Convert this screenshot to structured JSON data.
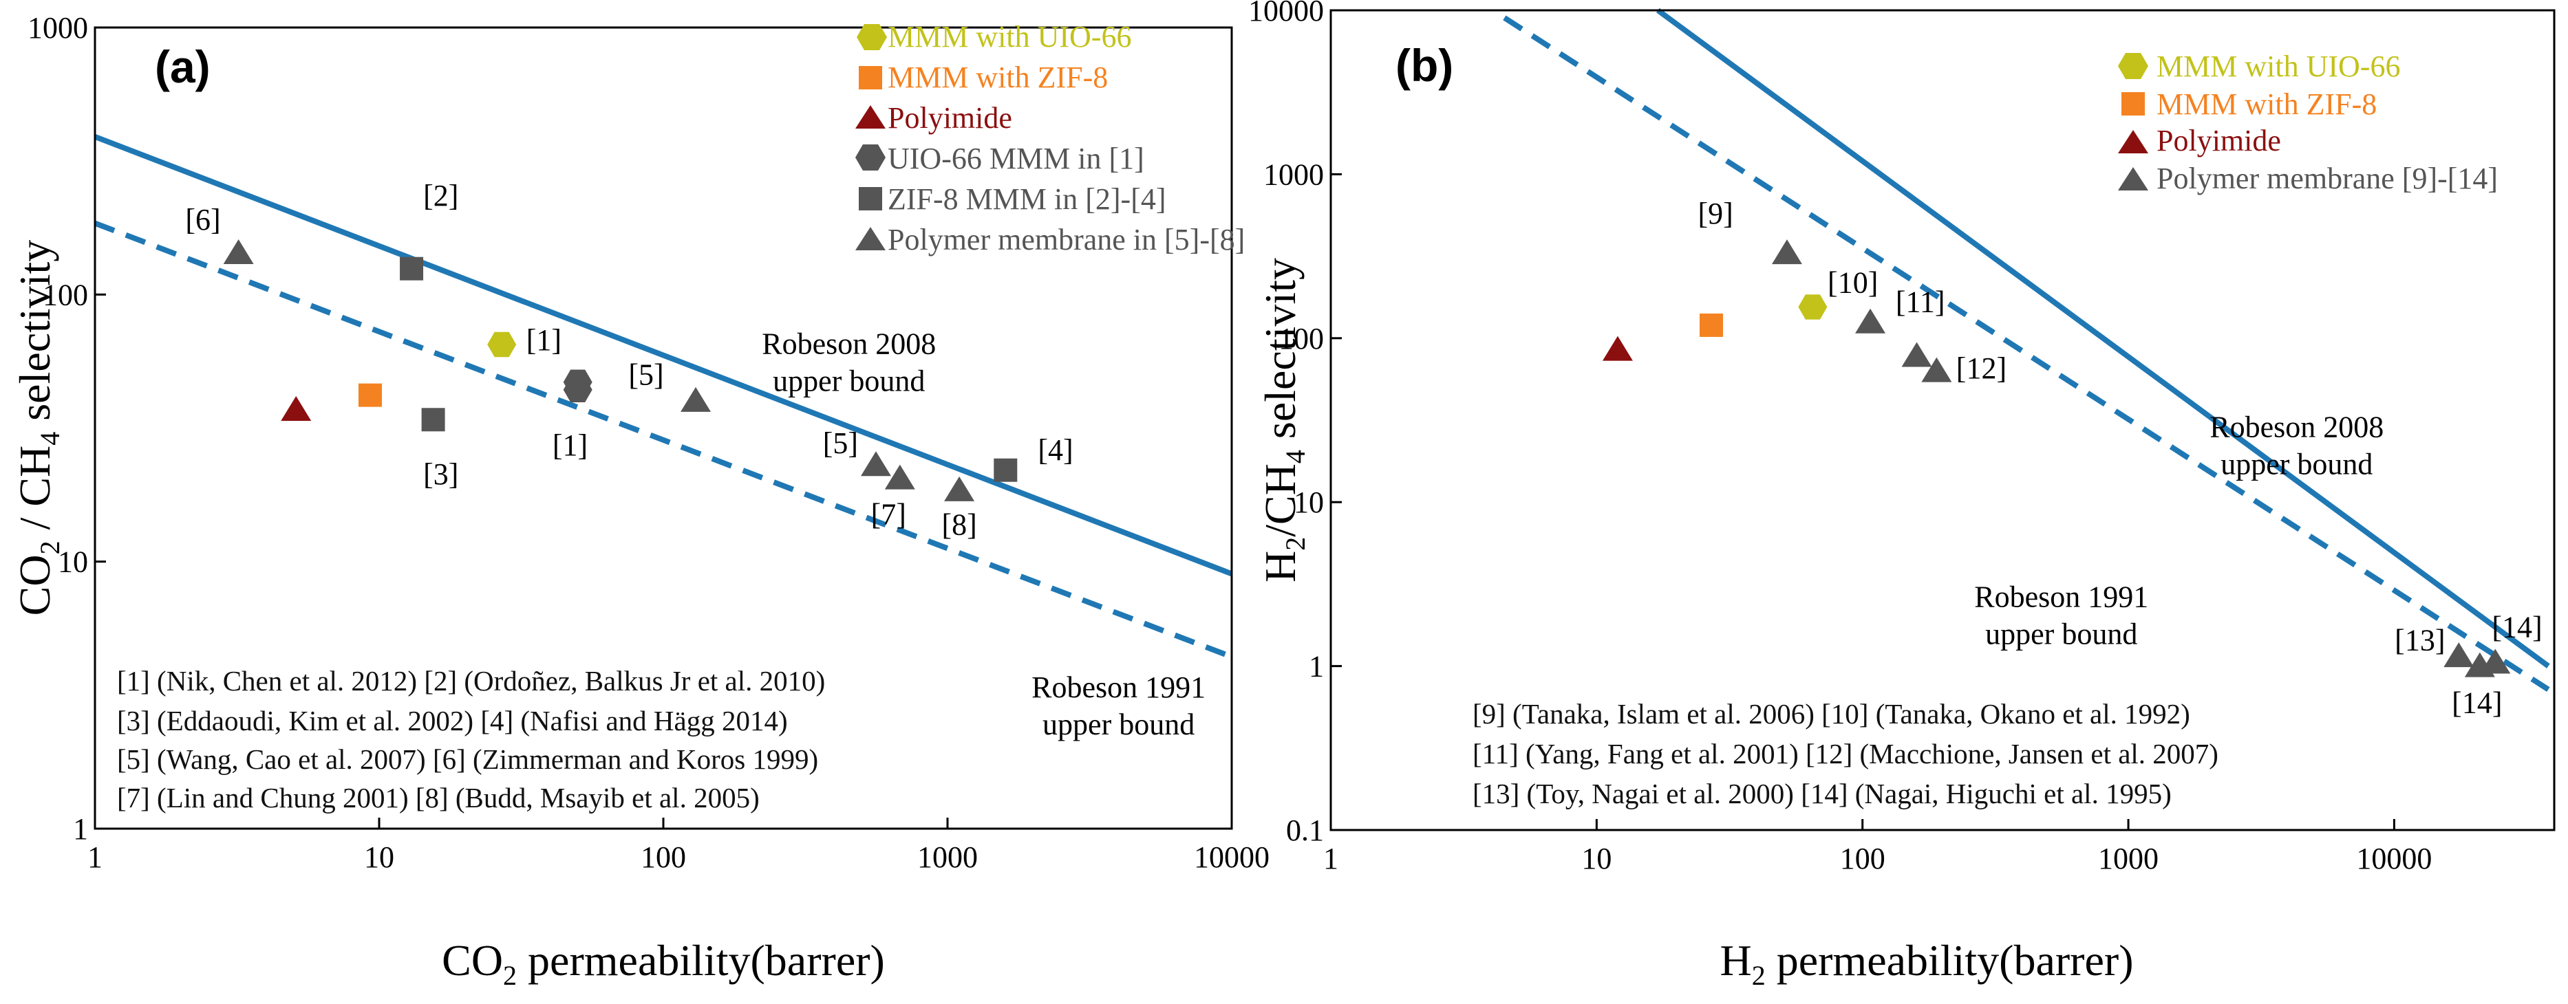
{
  "colors": {
    "bound": "#1f78b4",
    "uio": "#c2c21a",
    "zif": "#f58220",
    "polyimide": "#8b0f0f",
    "lit": "#555555",
    "axis": "#000000"
  },
  "chart_data": [
    {
      "type": "scatter",
      "panel": "(a)",
      "xlabel": {
        "base": "CO",
        "sub": "2",
        "rest": " permeability(barrer)"
      },
      "ylabel": {
        "p1": "CO",
        "s1": "2",
        "p2": " / CH",
        "s2": "4",
        "p3": " selectivity"
      },
      "xscale": "log",
      "yscale": "log",
      "xlim": [
        1,
        10000
      ],
      "ylim": [
        1,
        1000
      ],
      "xticks": [
        1,
        10,
        100,
        1000,
        10000
      ],
      "xtick_labels": [
        "1",
        "10",
        "100",
        "1000",
        "10000"
      ],
      "yticks": [
        1,
        10,
        100,
        1000
      ],
      "ytick_labels": [
        "1",
        "10",
        "100",
        "1000"
      ],
      "legend_position": "top-right",
      "legend": [
        {
          "label": "MMM with UIO-66",
          "marker": "hexagon",
          "color": "uio"
        },
        {
          "label": "MMM with ZIF-8",
          "marker": "square",
          "color": "zif"
        },
        {
          "label": "Polyimide",
          "marker": "triangle",
          "color": "polyimide"
        },
        {
          "label": "UIO-66 MMM in [1]",
          "marker": "hexagon",
          "color": "lit"
        },
        {
          "label": "ZIF-8 MMM in [2]-[4]",
          "marker": "square",
          "color": "lit"
        },
        {
          "label": "Polymer membrane in [5]-[8]",
          "marker": "triangle",
          "color": "lit"
        }
      ],
      "series": [
        {
          "name": "MMM with UIO-66",
          "marker": "hexagon",
          "color": "uio",
          "points": [
            [
              27,
              65
            ]
          ]
        },
        {
          "name": "MMM with ZIF-8",
          "marker": "square",
          "color": "zif",
          "points": [
            [
              9.3,
              42
            ]
          ]
        },
        {
          "name": "Polyimide",
          "marker": "triangle",
          "color": "polyimide",
          "points": [
            [
              5.1,
              37
            ]
          ]
        },
        {
          "name": "UIO-66 MMM in [1]",
          "marker": "hexagon",
          "color": "lit",
          "points": [
            [
              50,
              47
            ],
            [
              50,
              44
            ]
          ]
        },
        {
          "name": "ZIF-8 MMM in [2]-[4]",
          "marker": "square",
          "color": "lit",
          "points": [
            [
              13,
              125
            ],
            [
              15.5,
              34
            ],
            [
              1600,
              22
            ]
          ]
        },
        {
          "name": "Polymer membrane in [5]-[8]",
          "marker": "triangle",
          "color": "lit",
          "points": [
            [
              3.2,
              143
            ],
            [
              130,
              40
            ],
            [
              560,
              23
            ],
            [
              680,
              20.5
            ],
            [
              1100,
              18.5
            ]
          ]
        }
      ],
      "bounds": [
        {
          "name": "Robeson 2008 upper bound",
          "style": "solid",
          "x": [
            1,
            10000
          ],
          "y": [
            390,
            9
          ]
        },
        {
          "name": "Robeson 1991 upper bound",
          "style": "dashed",
          "x": [
            1,
            10000
          ],
          "y": [
            185,
            4.4
          ]
        }
      ],
      "bound_labels": [
        {
          "lines": [
            "Robeson 2008",
            "upper bound"
          ],
          "x": 450,
          "y": 60
        },
        {
          "lines": [
            "Robeson 1991",
            "upper bound"
          ],
          "x": 4000,
          "y": 3.1
        }
      ],
      "point_labels": [
        {
          "text": "[6]",
          "x": 2.4,
          "y": 175
        },
        {
          "text": "[2]",
          "x": 16.5,
          "y": 215
        },
        {
          "text": "[1]",
          "x": 38,
          "y": 62
        },
        {
          "text": "[5]",
          "x": 87,
          "y": 46
        },
        {
          "text": "[1]",
          "x": 47,
          "y": 25
        },
        {
          "text": "[3]",
          "x": 16.5,
          "y": 19.5
        },
        {
          "text": "[5]",
          "x": 420,
          "y": 25.5
        },
        {
          "text": "[7]",
          "x": 620,
          "y": 13.8
        },
        {
          "text": "[8]",
          "x": 1100,
          "y": 12.6
        },
        {
          "text": "[4]",
          "x": 2400,
          "y": 24
        }
      ],
      "references": [
        "[1] (Nik, Chen et al. 2012) [2] (Ordoñez, Balkus Jr et al. 2010)",
        "[3] (Eddaoudi, Kim et al. 2002) [4] (Nafisi and Hägg 2014)",
        "[5] (Wang, Cao et al. 2007) [6] (Zimmerman and Koros 1999)",
        "[7] (Lin and Chung 2001) [8] (Budd, Msayib et al. 2005)"
      ]
    },
    {
      "type": "scatter",
      "panel": "(b)",
      "xlabel": {
        "base": "H",
        "sub": "2",
        "rest": " permeability(barrer)"
      },
      "ylabel": {
        "p1": "H",
        "s1": "2",
        "p2": "/CH",
        "s2": "4",
        "p3": " selectivity"
      },
      "xscale": "log",
      "yscale": "log",
      "xlim": [
        1,
        40000
      ],
      "ylim": [
        0.1,
        10000
      ],
      "xticks": [
        1,
        10,
        100,
        1000,
        10000
      ],
      "xtick_labels": [
        "1",
        "10",
        "100",
        "1000",
        "10000"
      ],
      "yticks": [
        0.1,
        1,
        10,
        100,
        1000,
        10000
      ],
      "ytick_labels": [
        "0.1",
        "1",
        "10",
        "100",
        "1000",
        "10000"
      ],
      "legend_position": "top-right",
      "legend": [
        {
          "label": "MMM with UIO-66",
          "marker": "hexagon",
          "color": "uio"
        },
        {
          "label": "MMM with ZIF-8",
          "marker": "square",
          "color": "zif"
        },
        {
          "label": "Polyimide",
          "marker": "triangle",
          "color": "polyimide"
        },
        {
          "label": "Polymer membrane [9]-[14]",
          "marker": "triangle",
          "color": "lit"
        }
      ],
      "series": [
        {
          "name": "MMM with UIO-66",
          "marker": "hexagon",
          "color": "uio",
          "points": [
            [
              65,
              155
            ]
          ]
        },
        {
          "name": "MMM with ZIF-8",
          "marker": "square",
          "color": "zif",
          "points": [
            [
              27,
              120
            ]
          ]
        },
        {
          "name": "Polyimide",
          "marker": "triangle",
          "color": "polyimide",
          "points": [
            [
              12,
              85
            ]
          ]
        },
        {
          "name": "Polymer membrane [9]-[14]",
          "marker": "triangle",
          "color": "lit",
          "points": [
            [
              52,
              330
            ],
            [
              107,
              125
            ],
            [
              160,
              78
            ],
            [
              190,
              63
            ],
            [
              17500,
              1.15
            ],
            [
              21000,
              1.0
            ],
            [
              24000,
              1.05
            ]
          ]
        }
      ],
      "bounds": [
        {
          "name": "Robeson 2008 upper bound",
          "style": "solid",
          "x": [
            17,
            38000
          ],
          "y": [
            10000,
            1.0
          ]
        },
        {
          "name": "Robeson 1991 upper bound",
          "style": "dashed",
          "x": [
            4.5,
            38000
          ],
          "y": [
            9000,
            0.72
          ]
        }
      ],
      "bound_labels": [
        {
          "lines": [
            "Robeson 2008",
            "upper bound"
          ],
          "x": 4300,
          "y": 25
        },
        {
          "lines": [
            "Robeson 1991",
            "upper bound"
          ],
          "x": 560,
          "y": 2.3
        }
      ],
      "point_labels": [
        {
          "text": "[9]",
          "x": 28,
          "y": 500
        },
        {
          "text": "[10]",
          "x": 92,
          "y": 190
        },
        {
          "text": "[11]",
          "x": 165,
          "y": 145
        },
        {
          "text": "[12]",
          "x": 280,
          "y": 57
        },
        {
          "text": "[13]",
          "x": 12500,
          "y": 1.25
        },
        {
          "text": "[14]",
          "x": 29000,
          "y": 1.5
        },
        {
          "text": "[14]",
          "x": 20500,
          "y": 0.52
        }
      ],
      "references": [
        "[9] (Tanaka, Islam et al. 2006) [10] (Tanaka, Okano et al. 1992)",
        "[11] (Yang, Fang et al. 2001) [12] (Macchione, Jansen et al. 2007)",
        "[13] (Toy, Nagai et al. 2000) [14] (Nagai, Higuchi et al. 1995)"
      ]
    }
  ]
}
